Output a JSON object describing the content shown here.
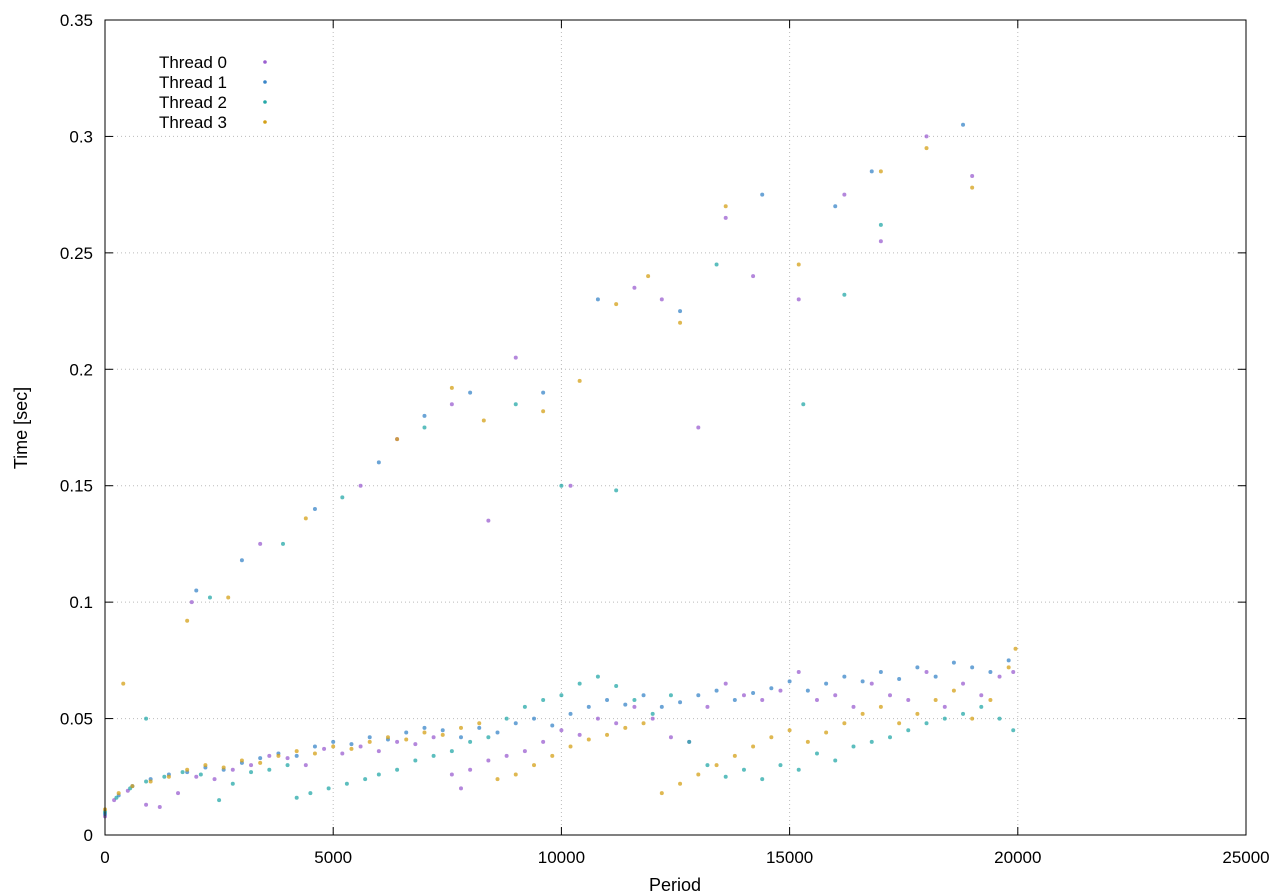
{
  "chart_data": {
    "type": "scatter",
    "xlabel": "Period",
    "ylabel": "Time [sec]",
    "xlim": [
      0,
      25000
    ],
    "ylim": [
      0,
      0.35
    ],
    "xticks": [
      0,
      5000,
      10000,
      15000,
      20000,
      25000
    ],
    "yticks": [
      0,
      0.05,
      0.1,
      0.15,
      0.2,
      0.25,
      0.3,
      0.35
    ],
    "xtick_labels": [
      "0",
      "5000",
      "10000",
      "15000",
      "20000",
      "25000"
    ],
    "ytick_labels": [
      "0",
      "0.05",
      "0.1",
      "0.15",
      "0.2",
      "0.25",
      "0.3",
      "0.35"
    ],
    "grid": true,
    "legend_position": "top-left",
    "series": [
      {
        "name": "Thread 0",
        "color": "#9b5fd0",
        "points": [
          [
            0,
            0.008
          ],
          [
            200,
            0.015
          ],
          [
            500,
            0.019
          ],
          [
            900,
            0.013
          ],
          [
            1200,
            0.012
          ],
          [
            1600,
            0.018
          ],
          [
            2000,
            0.025
          ],
          [
            2400,
            0.024
          ],
          [
            2800,
            0.028
          ],
          [
            3200,
            0.03
          ],
          [
            3600,
            0.034
          ],
          [
            4000,
            0.033
          ],
          [
            4400,
            0.03
          ],
          [
            4800,
            0.037
          ],
          [
            5200,
            0.035
          ],
          [
            5600,
            0.038
          ],
          [
            6000,
            0.036
          ],
          [
            6400,
            0.04
          ],
          [
            6800,
            0.039
          ],
          [
            7200,
            0.042
          ],
          [
            7600,
            0.026
          ],
          [
            7800,
            0.02
          ],
          [
            8000,
            0.028
          ],
          [
            8400,
            0.032
          ],
          [
            8800,
            0.034
          ],
          [
            9200,
            0.036
          ],
          [
            9600,
            0.04
          ],
          [
            10000,
            0.045
          ],
          [
            10400,
            0.043
          ],
          [
            10800,
            0.05
          ],
          [
            11200,
            0.048
          ],
          [
            11600,
            0.055
          ],
          [
            12000,
            0.05
          ],
          [
            12400,
            0.042
          ],
          [
            12800,
            0.04
          ],
          [
            13200,
            0.055
          ],
          [
            13600,
            0.065
          ],
          [
            14000,
            0.06
          ],
          [
            14400,
            0.058
          ],
          [
            14800,
            0.062
          ],
          [
            15200,
            0.07
          ],
          [
            15600,
            0.058
          ],
          [
            16000,
            0.06
          ],
          [
            16400,
            0.055
          ],
          [
            16800,
            0.065
          ],
          [
            17200,
            0.06
          ],
          [
            17600,
            0.058
          ],
          [
            18000,
            0.07
          ],
          [
            18400,
            0.055
          ],
          [
            18800,
            0.065
          ],
          [
            19200,
            0.06
          ],
          [
            19600,
            0.068
          ],
          [
            19900,
            0.07
          ],
          [
            1900,
            0.1
          ],
          [
            3400,
            0.125
          ],
          [
            5600,
            0.15
          ],
          [
            6400,
            0.17
          ],
          [
            7600,
            0.185
          ],
          [
            8400,
            0.135
          ],
          [
            9000,
            0.205
          ],
          [
            10200,
            0.15
          ],
          [
            11600,
            0.235
          ],
          [
            12200,
            0.23
          ],
          [
            13000,
            0.175
          ],
          [
            13600,
            0.265
          ],
          [
            14200,
            0.24
          ],
          [
            15200,
            0.23
          ],
          [
            16200,
            0.275
          ],
          [
            17000,
            0.255
          ],
          [
            18000,
            0.3
          ],
          [
            19000,
            0.283
          ]
        ]
      },
      {
        "name": "Thread 1",
        "color": "#3a86c8",
        "points": [
          [
            0,
            0.009
          ],
          [
            300,
            0.017
          ],
          [
            600,
            0.021
          ],
          [
            1000,
            0.024
          ],
          [
            1400,
            0.026
          ],
          [
            1800,
            0.027
          ],
          [
            2200,
            0.029
          ],
          [
            2600,
            0.028
          ],
          [
            3000,
            0.031
          ],
          [
            3400,
            0.033
          ],
          [
            3800,
            0.035
          ],
          [
            4200,
            0.034
          ],
          [
            4600,
            0.038
          ],
          [
            5000,
            0.04
          ],
          [
            5400,
            0.039
          ],
          [
            5800,
            0.042
          ],
          [
            6200,
            0.041
          ],
          [
            6600,
            0.044
          ],
          [
            7000,
            0.046
          ],
          [
            7400,
            0.045
          ],
          [
            7800,
            0.042
          ],
          [
            8200,
            0.046
          ],
          [
            8600,
            0.044
          ],
          [
            9000,
            0.048
          ],
          [
            9400,
            0.05
          ],
          [
            9800,
            0.047
          ],
          [
            10200,
            0.052
          ],
          [
            10600,
            0.055
          ],
          [
            11000,
            0.058
          ],
          [
            11400,
            0.056
          ],
          [
            11800,
            0.06
          ],
          [
            12200,
            0.055
          ],
          [
            12600,
            0.057
          ],
          [
            13000,
            0.06
          ],
          [
            13400,
            0.062
          ],
          [
            13800,
            0.058
          ],
          [
            14200,
            0.061
          ],
          [
            14600,
            0.063
          ],
          [
            15000,
            0.066
          ],
          [
            15400,
            0.062
          ],
          [
            15800,
            0.065
          ],
          [
            16200,
            0.068
          ],
          [
            16600,
            0.066
          ],
          [
            17000,
            0.07
          ],
          [
            17400,
            0.067
          ],
          [
            17800,
            0.072
          ],
          [
            18200,
            0.068
          ],
          [
            18600,
            0.074
          ],
          [
            19000,
            0.072
          ],
          [
            19400,
            0.07
          ],
          [
            19800,
            0.075
          ],
          [
            2000,
            0.105
          ],
          [
            3000,
            0.118
          ],
          [
            4600,
            0.14
          ],
          [
            6000,
            0.16
          ],
          [
            7000,
            0.18
          ],
          [
            8000,
            0.19
          ],
          [
            9600,
            0.19
          ],
          [
            10800,
            0.23
          ],
          [
            12600,
            0.225
          ],
          [
            14400,
            0.275
          ],
          [
            16000,
            0.27
          ],
          [
            16800,
            0.285
          ],
          [
            18800,
            0.305
          ]
        ]
      },
      {
        "name": "Thread 2",
        "color": "#26a8a8",
        "points": [
          [
            0,
            0.01
          ],
          [
            250,
            0.016
          ],
          [
            550,
            0.02
          ],
          [
            900,
            0.023
          ],
          [
            1300,
            0.025
          ],
          [
            1700,
            0.027
          ],
          [
            2100,
            0.026
          ],
          [
            2500,
            0.015
          ],
          [
            2800,
            0.022
          ],
          [
            3200,
            0.027
          ],
          [
            3600,
            0.028
          ],
          [
            4000,
            0.03
          ],
          [
            4200,
            0.016
          ],
          [
            4500,
            0.018
          ],
          [
            4900,
            0.02
          ],
          [
            5300,
            0.022
          ],
          [
            5700,
            0.024
          ],
          [
            6000,
            0.026
          ],
          [
            6400,
            0.028
          ],
          [
            6800,
            0.032
          ],
          [
            7200,
            0.034
          ],
          [
            7600,
            0.036
          ],
          [
            8000,
            0.04
          ],
          [
            8400,
            0.042
          ],
          [
            8800,
            0.05
          ],
          [
            9200,
            0.055
          ],
          [
            9600,
            0.058
          ],
          [
            10000,
            0.06
          ],
          [
            10400,
            0.065
          ],
          [
            10800,
            0.068
          ],
          [
            11200,
            0.064
          ],
          [
            11600,
            0.058
          ],
          [
            12000,
            0.052
          ],
          [
            12400,
            0.06
          ],
          [
            12800,
            0.04
          ],
          [
            13200,
            0.03
          ],
          [
            13600,
            0.025
          ],
          [
            14000,
            0.028
          ],
          [
            14400,
            0.024
          ],
          [
            14800,
            0.03
          ],
          [
            15200,
            0.028
          ],
          [
            15600,
            0.035
          ],
          [
            16000,
            0.032
          ],
          [
            16400,
            0.038
          ],
          [
            16800,
            0.04
          ],
          [
            17200,
            0.042
          ],
          [
            17600,
            0.045
          ],
          [
            18000,
            0.048
          ],
          [
            18400,
            0.05
          ],
          [
            18800,
            0.052
          ],
          [
            19200,
            0.055
          ],
          [
            19600,
            0.05
          ],
          [
            19900,
            0.045
          ],
          [
            900,
            0.05
          ],
          [
            2300,
            0.102
          ],
          [
            3900,
            0.125
          ],
          [
            5200,
            0.145
          ],
          [
            7000,
            0.175
          ],
          [
            9000,
            0.185
          ],
          [
            10000,
            0.15
          ],
          [
            11200,
            0.148
          ],
          [
            13400,
            0.245
          ],
          [
            15300,
            0.185
          ],
          [
            16200,
            0.232
          ],
          [
            17000,
            0.262
          ]
        ]
      },
      {
        "name": "Thread 3",
        "color": "#d4a017",
        "points": [
          [
            0,
            0.011
          ],
          [
            300,
            0.018
          ],
          [
            600,
            0.021
          ],
          [
            1000,
            0.023
          ],
          [
            1400,
            0.025
          ],
          [
            1800,
            0.028
          ],
          [
            2200,
            0.03
          ],
          [
            2600,
            0.029
          ],
          [
            3000,
            0.032
          ],
          [
            3400,
            0.031
          ],
          [
            3800,
            0.034
          ],
          [
            4200,
            0.036
          ],
          [
            4600,
            0.035
          ],
          [
            5000,
            0.038
          ],
          [
            5400,
            0.037
          ],
          [
            5800,
            0.04
          ],
          [
            6200,
            0.042
          ],
          [
            6600,
            0.041
          ],
          [
            7000,
            0.044
          ],
          [
            7400,
            0.043
          ],
          [
            7800,
            0.046
          ],
          [
            8200,
            0.048
          ],
          [
            8600,
            0.024
          ],
          [
            9000,
            0.026
          ],
          [
            9400,
            0.03
          ],
          [
            9800,
            0.034
          ],
          [
            10200,
            0.038
          ],
          [
            10600,
            0.041
          ],
          [
            11000,
            0.043
          ],
          [
            11400,
            0.046
          ],
          [
            11800,
            0.048
          ],
          [
            12200,
            0.018
          ],
          [
            12600,
            0.022
          ],
          [
            13000,
            0.026
          ],
          [
            13400,
            0.03
          ],
          [
            13800,
            0.034
          ],
          [
            14200,
            0.038
          ],
          [
            14600,
            0.042
          ],
          [
            15000,
            0.045
          ],
          [
            15400,
            0.04
          ],
          [
            15800,
            0.044
          ],
          [
            16200,
            0.048
          ],
          [
            16600,
            0.052
          ],
          [
            17000,
            0.055
          ],
          [
            17400,
            0.048
          ],
          [
            17800,
            0.052
          ],
          [
            18200,
            0.058
          ],
          [
            18600,
            0.062
          ],
          [
            19000,
            0.05
          ],
          [
            19400,
            0.058
          ],
          [
            19800,
            0.072
          ],
          [
            19950,
            0.08
          ],
          [
            400,
            0.065
          ],
          [
            1800,
            0.092
          ],
          [
            2700,
            0.102
          ],
          [
            4400,
            0.136
          ],
          [
            6400,
            0.17
          ],
          [
            7600,
            0.192
          ],
          [
            8300,
            0.178
          ],
          [
            9600,
            0.182
          ],
          [
            10400,
            0.195
          ],
          [
            11200,
            0.228
          ],
          [
            11900,
            0.24
          ],
          [
            12600,
            0.22
          ],
          [
            13600,
            0.27
          ],
          [
            15200,
            0.245
          ],
          [
            17000,
            0.285
          ],
          [
            18000,
            0.295
          ],
          [
            19000,
            0.278
          ]
        ]
      }
    ]
  }
}
